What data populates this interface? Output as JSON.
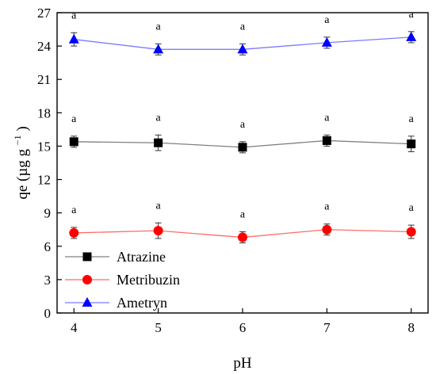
{
  "chart_data": {
    "type": "line",
    "title": "",
    "xlabel": "pH",
    "ylabel": "qe (µg g⁻¹)",
    "ylabel_base": "qe (µg g",
    "ylabel_exponent": "−1",
    "ylabel_close": ")",
    "x": [
      4,
      5,
      6,
      7,
      8
    ],
    "xlim": [
      3.8,
      8.2
    ],
    "ylim": [
      0,
      27
    ],
    "yticks": [
      0,
      3,
      6,
      9,
      12,
      15,
      18,
      21,
      24,
      27
    ],
    "grid": false,
    "legend_position": "bottom-left",
    "series": [
      {
        "name": "Atrazine",
        "color": "#808080",
        "marker": "square",
        "marker_color": "#000000",
        "values": [
          15.4,
          15.3,
          14.9,
          15.5,
          15.2
        ],
        "errors": [
          0.5,
          0.7,
          0.5,
          0.5,
          0.7
        ],
        "significance": [
          "a",
          "a",
          "a",
          "a",
          "a"
        ]
      },
      {
        "name": "Metribuzin",
        "color": "#ff6b6b",
        "marker": "circle",
        "marker_color": "#ff0000",
        "values": [
          7.2,
          7.4,
          6.8,
          7.5,
          7.3
        ],
        "errors": [
          0.5,
          0.7,
          0.5,
          0.5,
          0.6
        ],
        "significance": [
          "a",
          "a",
          "a",
          "a",
          "a"
        ]
      },
      {
        "name": "Ametryn",
        "color": "#7b7bff",
        "marker": "triangle",
        "marker_color": "#0000ff",
        "values": [
          24.6,
          23.7,
          23.7,
          24.3,
          24.8
        ],
        "errors": [
          0.6,
          0.5,
          0.5,
          0.5,
          0.5
        ],
        "significance": [
          "a",
          "a",
          "a",
          "a",
          "a"
        ]
      }
    ]
  }
}
